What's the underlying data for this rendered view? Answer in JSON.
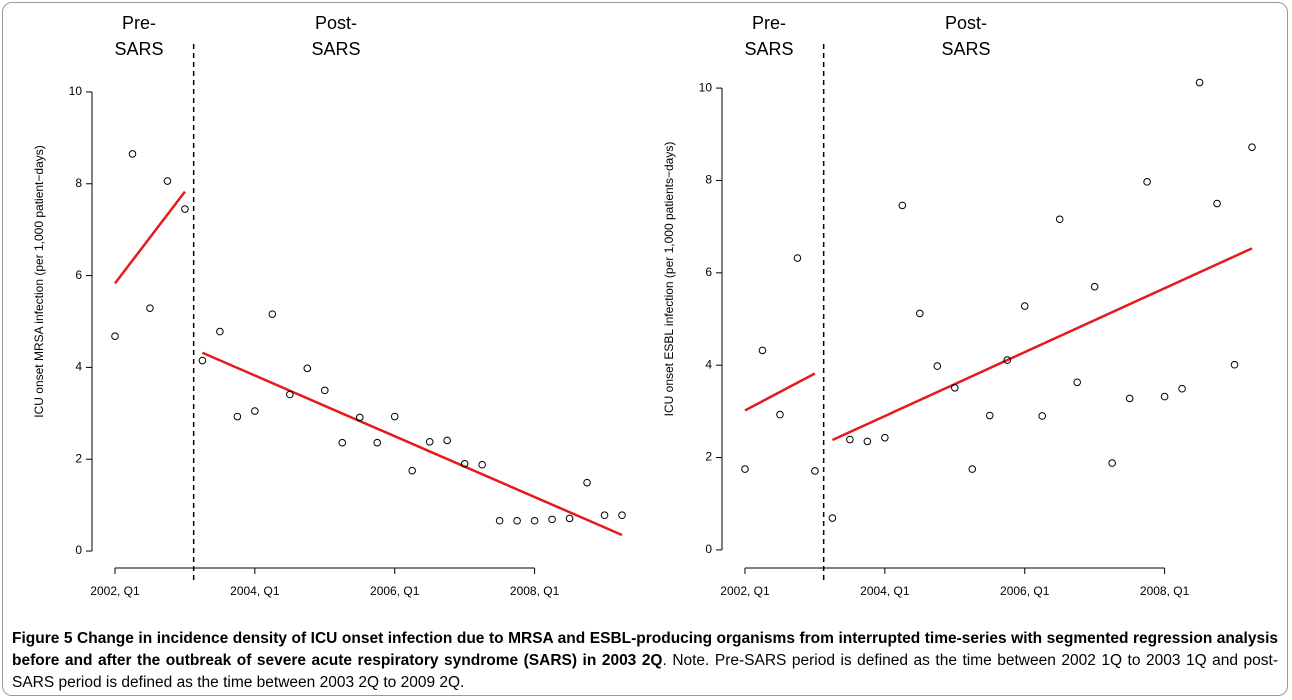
{
  "chart_data": [
    {
      "type": "scatter",
      "period_labels": [
        [
          "Pre-",
          "SARS"
        ],
        [
          "Post-",
          "SARS"
        ]
      ],
      "ylabel": "ICU onset MRSA infection (per 1,000 patient−days)",
      "x": [
        2002.0,
        2002.25,
        2002.5,
        2002.75,
        2003.0,
        2003.25,
        2003.5,
        2003.75,
        2004.0,
        2004.25,
        2004.5,
        2004.75,
        2005.0,
        2005.25,
        2005.5,
        2005.75,
        2006.0,
        2006.25,
        2006.5,
        2006.75,
        2007.0,
        2007.25,
        2007.5,
        2007.75,
        2008.0,
        2008.25,
        2008.5,
        2008.75,
        2009.0,
        2009.25
      ],
      "values": [
        4.68,
        8.65,
        5.29,
        8.06,
        7.45,
        4.15,
        4.78,
        2.93,
        3.05,
        5.16,
        3.41,
        3.98,
        3.5,
        2.36,
        2.91,
        2.36,
        2.93,
        1.75,
        2.38,
        2.41,
        1.9,
        1.88,
        0.66,
        0.66,
        0.66,
        0.69,
        0.71,
        1.49,
        0.78,
        0.78
      ],
      "color": "#000000",
      "regression_lines": [
        {
          "x": [
            2002.0,
            2003.0
          ],
          "values": [
            5.83,
            7.83
          ]
        },
        {
          "x": [
            2003.25,
            2009.25
          ],
          "values": [
            4.32,
            0.35
          ]
        }
      ],
      "line_color": "#e41a1c",
      "break_x": 2003.125,
      "xlim": [
        2001.8,
        2009.45
      ],
      "ylim": [
        -0.5,
        10.5
      ],
      "xticks": [
        {
          "value": 2002,
          "label": "2002, Q1"
        },
        {
          "value": 2004,
          "label": "2004, Q1"
        },
        {
          "value": 2006,
          "label": "2006, Q1"
        },
        {
          "value": 2008,
          "label": "2008, Q1"
        }
      ],
      "yticks": [
        0,
        2,
        4,
        6,
        8,
        10
      ]
    },
    {
      "type": "scatter",
      "period_labels": [
        [
          "Pre-",
          "SARS"
        ],
        [
          "Post-",
          "SARS"
        ]
      ],
      "ylabel": "ICU onset ESBL infection (per 1,000 patients−days)",
      "x": [
        2002.0,
        2002.25,
        2002.5,
        2002.75,
        2003.0,
        2003.25,
        2003.5,
        2003.75,
        2004.0,
        2004.25,
        2004.5,
        2004.75,
        2005.0,
        2005.25,
        2005.5,
        2005.75,
        2006.0,
        2006.25,
        2006.5,
        2006.75,
        2007.0,
        2007.25,
        2007.5,
        2007.75,
        2008.0,
        2008.25,
        2008.5,
        2008.75,
        2009.0,
        2009.25
      ],
      "values": [
        1.75,
        4.32,
        2.93,
        6.32,
        1.71,
        0.69,
        2.39,
        2.35,
        2.43,
        7.46,
        5.12,
        3.98,
        3.51,
        1.75,
        2.91,
        4.11,
        5.28,
        2.9,
        7.16,
        3.63,
        5.7,
        1.88,
        3.28,
        7.97,
        3.32,
        3.49,
        10.12,
        7.5,
        4.01,
        8.72
      ],
      "color": "#000000",
      "regression_lines": [
        {
          "x": [
            2002.0,
            2003.0
          ],
          "values": [
            3.02,
            3.82
          ]
        },
        {
          "x": [
            2003.25,
            2009.25
          ],
          "values": [
            2.38,
            6.53
          ]
        }
      ],
      "line_color": "#e41a1c",
      "break_x": 2003.125,
      "xlim": [
        2001.8,
        2009.45
      ],
      "ylim": [
        -0.5,
        10.5
      ],
      "xticks": [
        {
          "value": 2002,
          "label": "2002, Q1"
        },
        {
          "value": 2004,
          "label": "2004, Q1"
        },
        {
          "value": 2006,
          "label": "2006, Q1"
        },
        {
          "value": 2008,
          "label": "2008, Q1"
        }
      ],
      "yticks": [
        0,
        2,
        4,
        6,
        8,
        10
      ]
    }
  ],
  "caption": {
    "title": "Figure 5 Change in incidence density of ICU onset infection due to MRSA and ESBL-producing organisms from interrupted time-series with segmented regression analysis before and after the outbreak of severe acute respiratory syndrome (SARS) in 2003 2Q",
    "note": ". Note. Pre-SARS period is defined as the time between 2002 1Q to 2003 1Q and post-SARS period is defined as the time between 2003 2Q to 2009 2Q."
  }
}
